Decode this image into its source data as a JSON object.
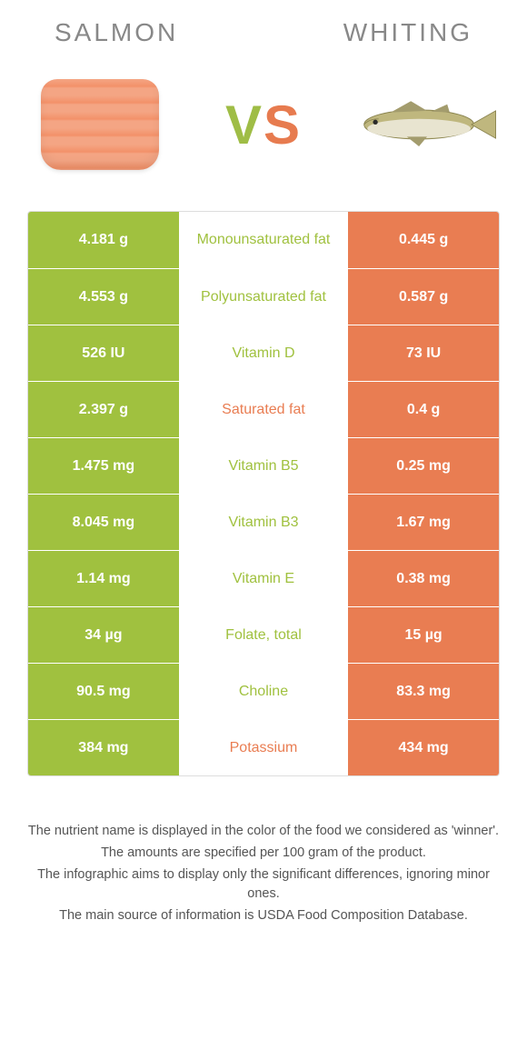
{
  "colors": {
    "salmon": "#a0c13f",
    "whiting": "#e97d52",
    "title_gray": "#888888",
    "vs_green": "#9fbd46",
    "vs_orange": "#e77b4f",
    "bg": "#ffffff"
  },
  "typography": {
    "title_fontsize": 28,
    "title_letter_spacing": 3,
    "vs_fontsize": 60,
    "cell_fontsize": 16,
    "footer_fontsize": 14.5
  },
  "header": {
    "left_title": "SALMON",
    "right_title": "WHITING",
    "vs_v": "V",
    "vs_s": "S"
  },
  "table": {
    "columns": [
      "salmon_value",
      "nutrient_label",
      "whiting_value"
    ],
    "rows": [
      {
        "salmon": "4.181 g",
        "label": "Monounsaturated fat",
        "whiting": "0.445 g",
        "winner": "salmon"
      },
      {
        "salmon": "4.553 g",
        "label": "Polyunsaturated fat",
        "whiting": "0.587 g",
        "winner": "salmon"
      },
      {
        "salmon": "526 IU",
        "label": "Vitamin D",
        "whiting": "73 IU",
        "winner": "salmon"
      },
      {
        "salmon": "2.397 g",
        "label": "Saturated fat",
        "whiting": "0.4 g",
        "winner": "whiting"
      },
      {
        "salmon": "1.475 mg",
        "label": "Vitamin B5",
        "whiting": "0.25 mg",
        "winner": "salmon"
      },
      {
        "salmon": "8.045 mg",
        "label": "Vitamin B3",
        "whiting": "1.67 mg",
        "winner": "salmon"
      },
      {
        "salmon": "1.14 mg",
        "label": "Vitamin E",
        "whiting": "0.38 mg",
        "winner": "salmon"
      },
      {
        "salmon": "34 µg",
        "label": "Folate, total",
        "whiting": "15 µg",
        "winner": "salmon"
      },
      {
        "salmon": "90.5 mg",
        "label": "Choline",
        "whiting": "83.3 mg",
        "winner": "salmon"
      },
      {
        "salmon": "384 mg",
        "label": "Potassium",
        "whiting": "434 mg",
        "winner": "whiting"
      }
    ]
  },
  "footer": {
    "line1": "The nutrient name is displayed in the color of the food we considered as 'winner'.",
    "line2": "The amounts are specified per 100 gram of the product.",
    "line3": "The infographic aims to display only the significant differences, ignoring minor ones.",
    "line4": "The main source of information is USDA Food Composition Database."
  }
}
